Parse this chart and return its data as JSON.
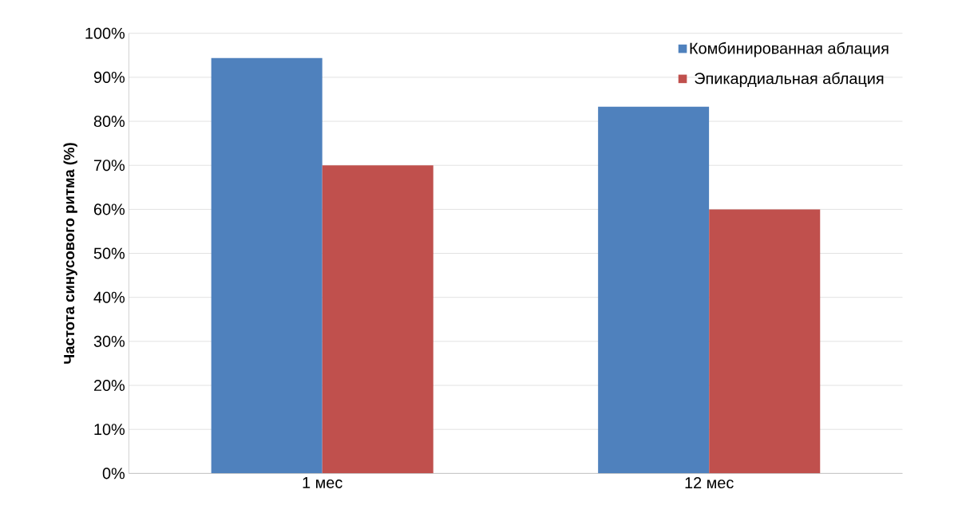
{
  "chart_data": {
    "type": "bar",
    "ylabel": "Частота синусового ритма (%)",
    "categories": [
      "1 мес",
      "12 мес"
    ],
    "series": [
      {
        "name": "Комбинированная аблация",
        "color": "#4f81bd",
        "values": [
          94.4,
          83.3
        ]
      },
      {
        "name": "Эпикардиальная аблация",
        "color": "#c0504d",
        "values": [
          70,
          60
        ]
      }
    ],
    "ylim": [
      0,
      100
    ],
    "yticks": [
      {
        "value": 0,
        "label": "0%"
      },
      {
        "value": 10,
        "label": "10%"
      },
      {
        "value": 20,
        "label": "20%"
      },
      {
        "value": 30,
        "label": "30%"
      },
      {
        "value": 40,
        "label": "40%"
      },
      {
        "value": 50,
        "label": "50%"
      },
      {
        "value": 60,
        "label": "60%"
      },
      {
        "value": 70,
        "label": "70%"
      },
      {
        "value": 80,
        "label": "80%"
      },
      {
        "value": 90,
        "label": "90%"
      },
      {
        "value": 100,
        "label": "100%"
      }
    ],
    "grid": "y",
    "legend": "top right"
  }
}
